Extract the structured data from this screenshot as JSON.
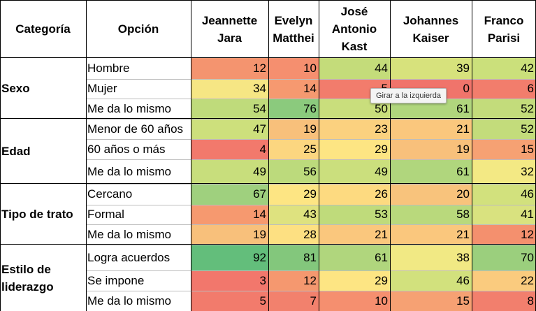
{
  "table": {
    "headers": {
      "category": "Categoría",
      "option": "Opción",
      "candidates": [
        "Jeannette\nJara",
        "Evelyn\nMatthei",
        "José\nAntonio\nKast",
        "Johannes\nKaiser",
        "Franco\nParisi"
      ]
    },
    "groups": [
      {
        "label": "Sexo",
        "rows": [
          {
            "option": "Hombre",
            "values": [
              "12",
              "10",
              "44",
              "39",
              "42"
            ],
            "colors": [
              "#f4946f",
              "#f58f6f",
              "#c4dc7a",
              "#d7e27c",
              "#cbe07b"
            ]
          },
          {
            "option": "Mujer",
            "values": [
              "34",
              "14",
              "5",
              "0",
              "6"
            ],
            "colors": [
              "#f6e684",
              "#f69970",
              "#f27c6c",
              "#f0746b",
              "#f27d6c"
            ]
          },
          {
            "option": "Me da lo mismo",
            "values": [
              "54",
              "76",
              "50",
              "61",
              "52"
            ],
            "colors": [
              "#bfdb7b",
              "#8bca7d",
              "#c9de7c",
              "#b0d67d",
              "#c3dc7b"
            ]
          }
        ]
      },
      {
        "label": "Edad",
        "rows": [
          {
            "option": "Menor de 60 años",
            "values": [
              "47",
              "19",
              "23",
              "21",
              "52"
            ],
            "colors": [
              "#cde07c",
              "#f8c07b",
              "#fbd17f",
              "#fac77d",
              "#c3dc7b"
            ]
          },
          {
            "option": "60 años o más",
            "values": [
              "4",
              "25",
              "29",
              "19",
              "15"
            ],
            "colors": [
              "#f2796c",
              "#fcd680",
              "#fde583",
              "#f8c07b",
              "#f6a173"
            ]
          },
          {
            "option": "Me da lo mismo",
            "values": [
              "49",
              "56",
              "49",
              "61",
              "32"
            ],
            "colors": [
              "#c8de7c",
              "#bcda7c",
              "#cbdf7d",
              "#b0d67d",
              "#f3e984"
            ]
          }
        ]
      },
      {
        "label": "Tipo de trato",
        "rows": [
          {
            "option": "Cercano",
            "values": [
              "67",
              "29",
              "26",
              "20",
              "46"
            ],
            "colors": [
              "#9fd07e",
              "#fde583",
              "#fdda80",
              "#f8c37c",
              "#d2e17d"
            ]
          },
          {
            "option": "Formal",
            "values": [
              "14",
              "43",
              "53",
              "58",
              "41"
            ],
            "colors": [
              "#f6996f",
              "#dee27f",
              "#bfdb7b",
              "#b9d97c",
              "#d9e27f"
            ]
          },
          {
            "option": "Me da lo mismo",
            "values": [
              "19",
              "28",
              "21",
              "21",
              "12"
            ],
            "colors": [
              "#f8c07b",
              "#fde082",
              "#fac77d",
              "#fac77d",
              "#f4906e"
            ]
          }
        ]
      },
      {
        "label": "Estilo de\nliderazgo",
        "rows": [
          {
            "option": "Logra acuerdos",
            "values": [
              "92",
              "81",
              "61",
              "38",
              "70"
            ],
            "colors": [
              "#63be7b",
              "#83c77c",
              "#b0d67d",
              "#f1e984",
              "#9bcf7d"
            ]
          },
          {
            "option": "Se impone",
            "values": [
              "3",
              "12",
              "29",
              "46",
              "22"
            ],
            "colors": [
              "#f2776c",
              "#f5986f",
              "#fde583",
              "#d2e17d",
              "#facb7e"
            ]
          },
          {
            "option": "Me da lo mismo",
            "values": [
              "5",
              "7",
              "10",
              "15",
              "8"
            ],
            "colors": [
              "#f27b6c",
              "#f2816d",
              "#f58f6f",
              "#f6a173",
              "#f27f6d"
            ]
          }
        ]
      }
    ]
  },
  "tooltip": {
    "text": "Girar a la izquierda"
  }
}
